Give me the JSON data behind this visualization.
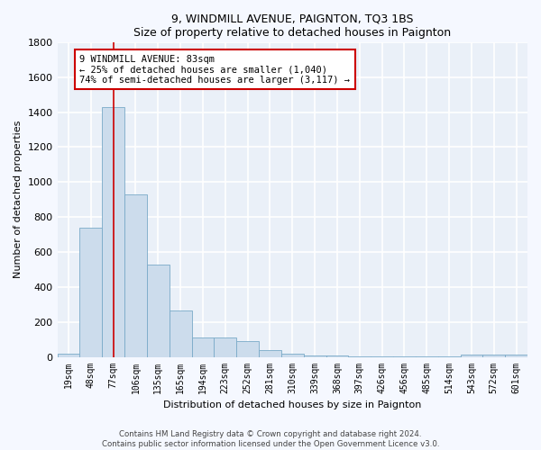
{
  "title": "9, WINDMILL AVENUE, PAIGNTON, TQ3 1BS",
  "subtitle": "Size of property relative to detached houses in Paignton",
  "xlabel": "Distribution of detached houses by size in Paignton",
  "ylabel": "Number of detached properties",
  "categories": [
    "19sqm",
    "48sqm",
    "77sqm",
    "106sqm",
    "135sqm",
    "165sqm",
    "194sqm",
    "223sqm",
    "252sqm",
    "281sqm",
    "310sqm",
    "339sqm",
    "368sqm",
    "397sqm",
    "426sqm",
    "456sqm",
    "485sqm",
    "514sqm",
    "543sqm",
    "572sqm",
    "601sqm"
  ],
  "values": [
    20,
    740,
    1430,
    930,
    530,
    265,
    110,
    110,
    90,
    40,
    20,
    8,
    8,
    5,
    5,
    5,
    5,
    5,
    15,
    15,
    15
  ],
  "bar_color": "#ccdcec",
  "bar_edge_color": "#7aaac8",
  "red_line_x": 2,
  "annotation_line1": "9 WINDMILL AVENUE: 83sqm",
  "annotation_line2": "← 25% of detached houses are smaller (1,040)",
  "annotation_line3": "74% of semi-detached houses are larger (3,117) →",
  "annotation_box_color": "#ffffff",
  "annotation_box_edge": "#cc0000",
  "footer": "Contains HM Land Registry data © Crown copyright and database right 2024.\nContains public sector information licensed under the Open Government Licence v3.0.",
  "ylim_max": 1800,
  "yticks": [
    0,
    200,
    400,
    600,
    800,
    1000,
    1200,
    1400,
    1600,
    1800
  ],
  "bg_color": "#eaf0f8",
  "grid_color": "#ffffff",
  "fig_bg": "#f5f8ff"
}
